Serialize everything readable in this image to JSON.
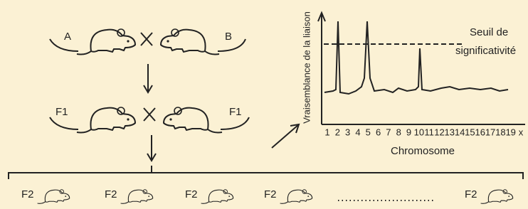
{
  "parents": {
    "left": "A",
    "right": "B"
  },
  "f1": {
    "left": "F1",
    "right": "F1"
  },
  "f2": [
    "F2",
    "F2",
    "F2",
    "F2",
    "F2"
  ],
  "plot": {
    "y_label": "Vraisemblance de la liaison",
    "x_label": "Chromosome",
    "threshold_label_1": "Seuil de",
    "threshold_label_2": "significativité",
    "chromosomes": [
      "1",
      "2",
      "3",
      "4",
      "5",
      "6",
      "7",
      "8",
      "9",
      "10",
      "11",
      "12",
      "13",
      "14",
      "15",
      "16",
      "17",
      "18",
      "19",
      "x"
    ]
  }
}
